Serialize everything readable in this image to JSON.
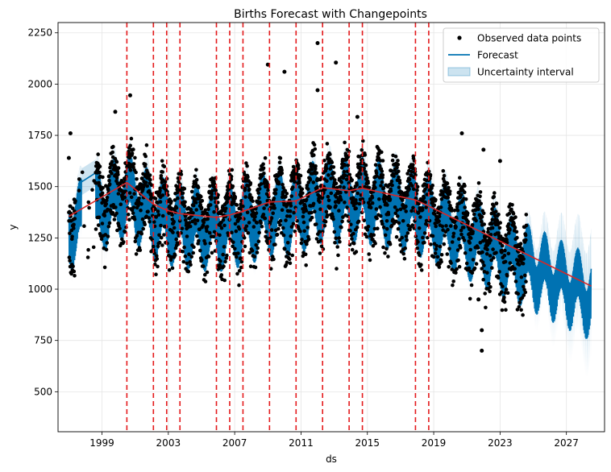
{
  "chart_data": {
    "type": "line",
    "title": "Births Forecast with Changepoints",
    "xlabel": "ds",
    "ylabel": "y",
    "xlim": [
      1996.35,
      2029.3
    ],
    "ylim": [
      305,
      2300
    ],
    "x_ticks": [
      1999,
      2003,
      2007,
      2011,
      2015,
      2019,
      2023,
      2027
    ],
    "y_ticks": [
      500,
      750,
      1000,
      1250,
      1500,
      1750,
      2000,
      2250
    ],
    "grid": true,
    "legend": {
      "position": "top-right",
      "entries": [
        "Observed data points",
        "Forecast",
        "Uncertainty interval"
      ]
    },
    "colors": {
      "observed": "#000000",
      "forecast": "#0072B2",
      "uncertainty": "#0072B2",
      "trend": "#d62728",
      "changepoints": "#e41a1c",
      "grid": "#e5e5e5"
    },
    "observed_start": 1997.0,
    "observed_end": 2024.6,
    "forecast_end": 2028.5,
    "trend": {
      "x": [
        1997.0,
        2000.5,
        2002.1,
        2002.9,
        2003.7,
        2005.9,
        2006.7,
        2007.5,
        2009.1,
        2010.7,
        2012.3,
        2013.9,
        2014.7,
        2017.9,
        2018.7,
        2028.5
      ],
      "y": [
        1355,
        1520,
        1415,
        1385,
        1368,
        1350,
        1362,
        1380,
        1425,
        1430,
        1495,
        1480,
        1492,
        1435,
        1405,
        1015
      ]
    },
    "changepoints": [
      2000.5,
      2002.1,
      2002.9,
      2003.7,
      2005.9,
      2006.7,
      2007.5,
      2009.1,
      2010.7,
      2012.3,
      2013.9,
      2014.7,
      2017.9,
      2018.7
    ],
    "outliers": [
      {
        "x": 1997.1,
        "y": 1760
      },
      {
        "x": 2000.7,
        "y": 1945
      },
      {
        "x": 1999.8,
        "y": 1865
      },
      {
        "x": 2009.0,
        "y": 2095
      },
      {
        "x": 2010.0,
        "y": 2060
      },
      {
        "x": 2012.0,
        "y": 2200
      },
      {
        "x": 2012.0,
        "y": 1970
      },
      {
        "x": 2013.1,
        "y": 2105
      },
      {
        "x": 2014.4,
        "y": 1840
      },
      {
        "x": 2022.0,
        "y": 1680
      },
      {
        "x": 2023.0,
        "y": 1625
      },
      {
        "x": 2020.7,
        "y": 1760
      },
      {
        "x": 1997.0,
        "y": 1640
      },
      {
        "x": 2021.7,
        "y": 950
      },
      {
        "x": 2021.9,
        "y": 800
      },
      {
        "x": 2021.9,
        "y": 700
      }
    ]
  }
}
